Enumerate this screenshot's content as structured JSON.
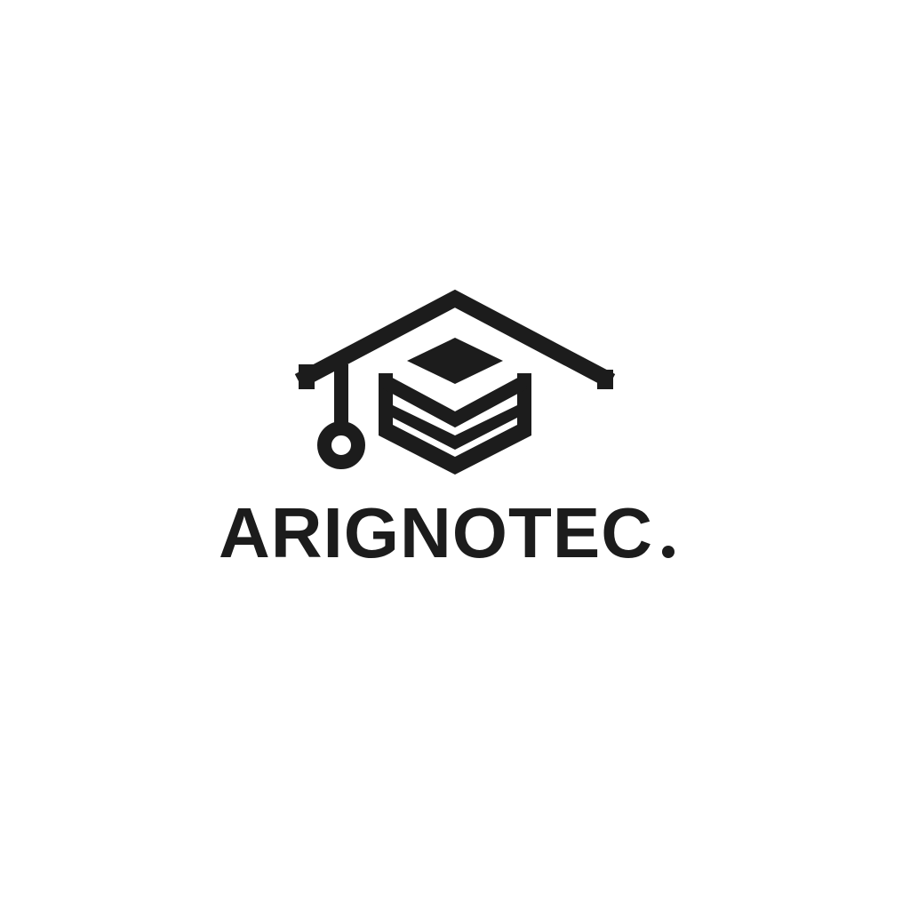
{
  "logo": {
    "wordmark_text": "ARIGNOTEC",
    "wordmark_suffix": ".",
    "ink_color": "#1c1c1c",
    "background_color": "#ffffff",
    "mark_icon": "graduation-cap-house-icon"
  }
}
